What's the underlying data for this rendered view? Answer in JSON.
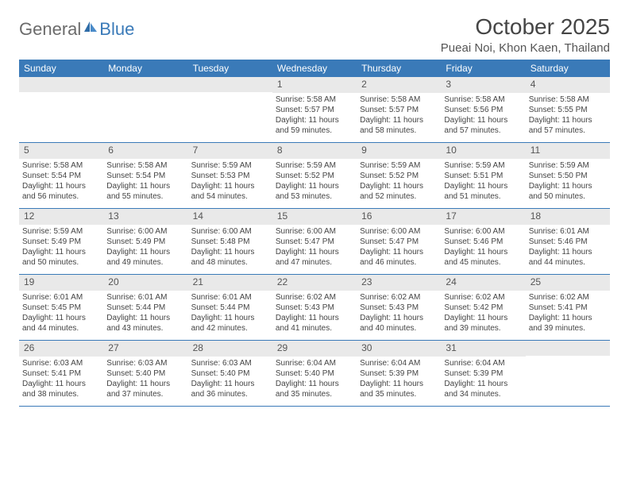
{
  "logo": {
    "text_gray": "General",
    "text_blue": "Blue"
  },
  "title": "October 2025",
  "location": "Pueai Noi, Khon Kaen, Thailand",
  "colors": {
    "header_bg": "#3a7ab8",
    "header_text": "#ffffff",
    "daynum_bg": "#e9e9e9",
    "border": "#3a7ab8",
    "body_text": "#444444"
  },
  "day_names": [
    "Sunday",
    "Monday",
    "Tuesday",
    "Wednesday",
    "Thursday",
    "Friday",
    "Saturday"
  ],
  "weeks": [
    [
      null,
      null,
      null,
      {
        "n": "1",
        "sr": "5:58 AM",
        "ss": "5:57 PM",
        "dl": "11 hours and 59 minutes."
      },
      {
        "n": "2",
        "sr": "5:58 AM",
        "ss": "5:57 PM",
        "dl": "11 hours and 58 minutes."
      },
      {
        "n": "3",
        "sr": "5:58 AM",
        "ss": "5:56 PM",
        "dl": "11 hours and 57 minutes."
      },
      {
        "n": "4",
        "sr": "5:58 AM",
        "ss": "5:55 PM",
        "dl": "11 hours and 57 minutes."
      }
    ],
    [
      {
        "n": "5",
        "sr": "5:58 AM",
        "ss": "5:54 PM",
        "dl": "11 hours and 56 minutes."
      },
      {
        "n": "6",
        "sr": "5:58 AM",
        "ss": "5:54 PM",
        "dl": "11 hours and 55 minutes."
      },
      {
        "n": "7",
        "sr": "5:59 AM",
        "ss": "5:53 PM",
        "dl": "11 hours and 54 minutes."
      },
      {
        "n": "8",
        "sr": "5:59 AM",
        "ss": "5:52 PM",
        "dl": "11 hours and 53 minutes."
      },
      {
        "n": "9",
        "sr": "5:59 AM",
        "ss": "5:52 PM",
        "dl": "11 hours and 52 minutes."
      },
      {
        "n": "10",
        "sr": "5:59 AM",
        "ss": "5:51 PM",
        "dl": "11 hours and 51 minutes."
      },
      {
        "n": "11",
        "sr": "5:59 AM",
        "ss": "5:50 PM",
        "dl": "11 hours and 50 minutes."
      }
    ],
    [
      {
        "n": "12",
        "sr": "5:59 AM",
        "ss": "5:49 PM",
        "dl": "11 hours and 50 minutes."
      },
      {
        "n": "13",
        "sr": "6:00 AM",
        "ss": "5:49 PM",
        "dl": "11 hours and 49 minutes."
      },
      {
        "n": "14",
        "sr": "6:00 AM",
        "ss": "5:48 PM",
        "dl": "11 hours and 48 minutes."
      },
      {
        "n": "15",
        "sr": "6:00 AM",
        "ss": "5:47 PM",
        "dl": "11 hours and 47 minutes."
      },
      {
        "n": "16",
        "sr": "6:00 AM",
        "ss": "5:47 PM",
        "dl": "11 hours and 46 minutes."
      },
      {
        "n": "17",
        "sr": "6:00 AM",
        "ss": "5:46 PM",
        "dl": "11 hours and 45 minutes."
      },
      {
        "n": "18",
        "sr": "6:01 AM",
        "ss": "5:46 PM",
        "dl": "11 hours and 44 minutes."
      }
    ],
    [
      {
        "n": "19",
        "sr": "6:01 AM",
        "ss": "5:45 PM",
        "dl": "11 hours and 44 minutes."
      },
      {
        "n": "20",
        "sr": "6:01 AM",
        "ss": "5:44 PM",
        "dl": "11 hours and 43 minutes."
      },
      {
        "n": "21",
        "sr": "6:01 AM",
        "ss": "5:44 PM",
        "dl": "11 hours and 42 minutes."
      },
      {
        "n": "22",
        "sr": "6:02 AM",
        "ss": "5:43 PM",
        "dl": "11 hours and 41 minutes."
      },
      {
        "n": "23",
        "sr": "6:02 AM",
        "ss": "5:43 PM",
        "dl": "11 hours and 40 minutes."
      },
      {
        "n": "24",
        "sr": "6:02 AM",
        "ss": "5:42 PM",
        "dl": "11 hours and 39 minutes."
      },
      {
        "n": "25",
        "sr": "6:02 AM",
        "ss": "5:41 PM",
        "dl": "11 hours and 39 minutes."
      }
    ],
    [
      {
        "n": "26",
        "sr": "6:03 AM",
        "ss": "5:41 PM",
        "dl": "11 hours and 38 minutes."
      },
      {
        "n": "27",
        "sr": "6:03 AM",
        "ss": "5:40 PM",
        "dl": "11 hours and 37 minutes."
      },
      {
        "n": "28",
        "sr": "6:03 AM",
        "ss": "5:40 PM",
        "dl": "11 hours and 36 minutes."
      },
      {
        "n": "29",
        "sr": "6:04 AM",
        "ss": "5:40 PM",
        "dl": "11 hours and 35 minutes."
      },
      {
        "n": "30",
        "sr": "6:04 AM",
        "ss": "5:39 PM",
        "dl": "11 hours and 35 minutes."
      },
      {
        "n": "31",
        "sr": "6:04 AM",
        "ss": "5:39 PM",
        "dl": "11 hours and 34 minutes."
      },
      null
    ]
  ],
  "labels": {
    "sunrise": "Sunrise:",
    "sunset": "Sunset:",
    "daylight": "Daylight:"
  }
}
